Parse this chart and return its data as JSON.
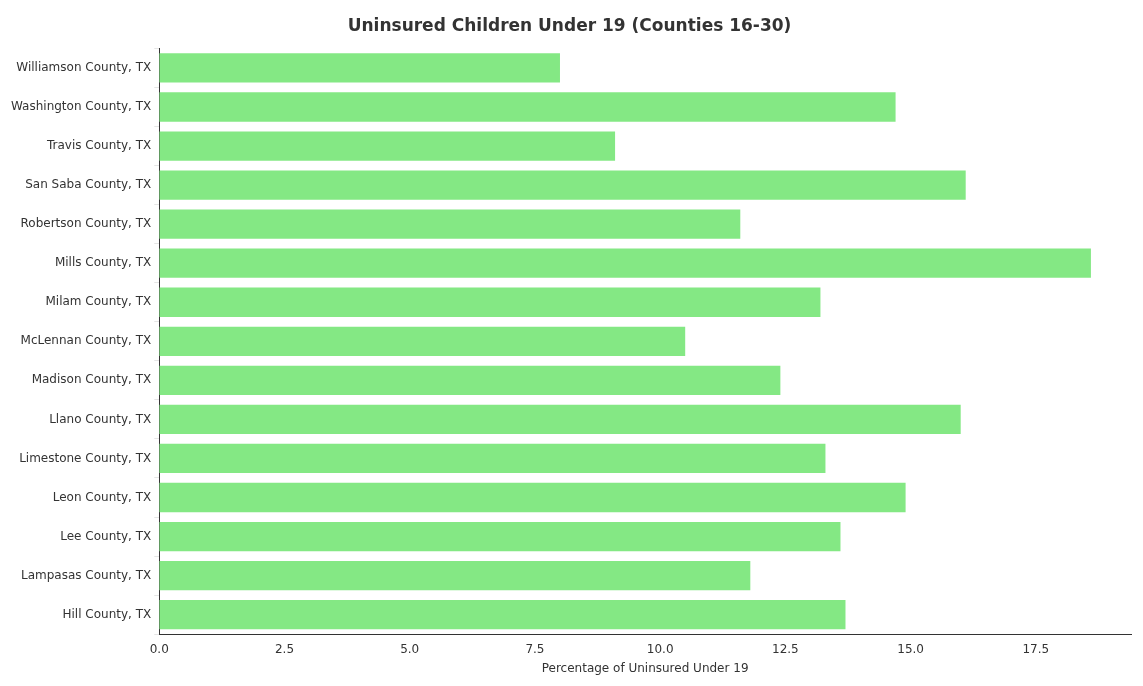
{
  "chart_data": {
    "type": "bar",
    "orientation": "horizontal",
    "title": "Uninsured Children Under 19 (Counties 16-30)",
    "xlabel": "Percentage of Uninsured Under 19",
    "categories": [
      "Williamson County, TX",
      "Washington County, TX",
      "Travis County, TX",
      "San Saba County, TX",
      "Robertson County, TX",
      "Mills County, TX",
      "Milam County, TX",
      "McLennan County, TX",
      "Madison County, TX",
      "Llano County, TX",
      "Limestone County, TX",
      "Leon County, TX",
      "Lee County, TX",
      "Lampasas County, TX",
      "Hill County, TX"
    ],
    "values": [
      8.0,
      14.7,
      9.1,
      16.1,
      11.6,
      18.6,
      13.2,
      10.5,
      12.4,
      16.0,
      13.3,
      14.9,
      13.6,
      11.8,
      13.7
    ],
    "color": "#84e884",
    "xlim": [
      0,
      19.4
    ],
    "xticks": [
      {
        "value": 0,
        "label": "0.0"
      },
      2.5,
      {
        "value": 5,
        "label": "5.0"
      },
      7.5,
      {
        "value": 10,
        "label": "10.0"
      },
      12.5,
      {
        "value": 15,
        "label": "15.0"
      },
      17.5
    ],
    "grid": false,
    "legend": false
  }
}
